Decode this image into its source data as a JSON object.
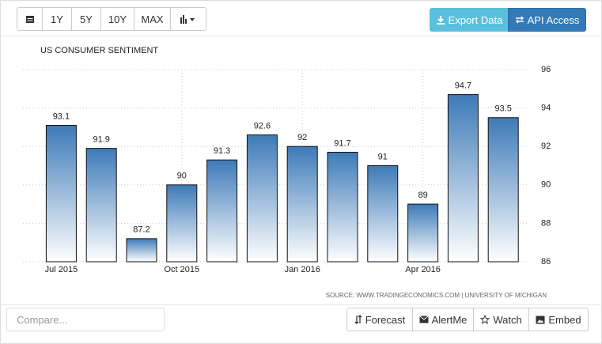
{
  "ui": {
    "range_buttons": [
      "1Y",
      "5Y",
      "10Y",
      "MAX"
    ],
    "export": "Export Data",
    "api": "API Access",
    "compare_placeholder": "Compare...",
    "actions": [
      "Forecast",
      "AlertMe",
      "Watch",
      "Embed"
    ]
  },
  "chart_data": {
    "type": "bar",
    "title": "US CONSUMER SENTIMENT",
    "categories": [
      "Jul 2015",
      null,
      null,
      "Oct 2015",
      null,
      null,
      "Jan 2016",
      null,
      null,
      "Apr 2016",
      null,
      null
    ],
    "values": [
      93.1,
      91.9,
      87.2,
      90,
      91.3,
      92.6,
      92,
      91.7,
      91,
      89,
      94.7,
      93.5
    ],
    "ylim": [
      86,
      96
    ],
    "yticks": [
      86,
      88,
      90,
      92,
      94,
      96
    ],
    "grid": true,
    "color": "#3d7ab8",
    "source": "SOURCE: WWW.TRADINGECONOMICS.COM | UNIVERSITY OF MICHIGAN"
  }
}
